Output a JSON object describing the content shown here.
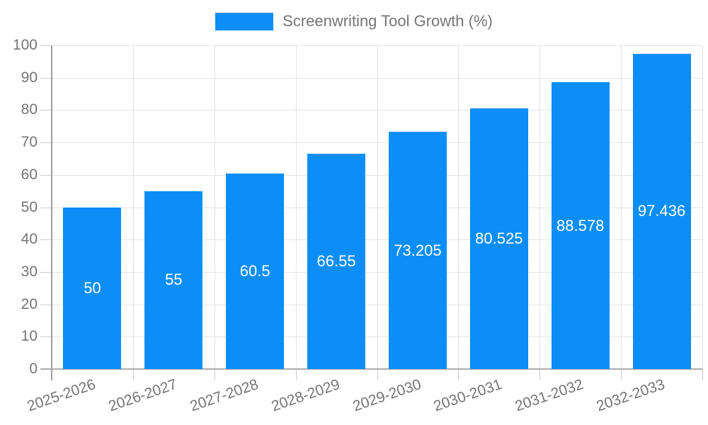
{
  "legend": {
    "label": "Screenwriting Tool Growth (%)",
    "swatch_color": "#0b8ef8"
  },
  "chart_data": {
    "type": "bar",
    "title": "",
    "xlabel": "",
    "ylabel": "",
    "categories": [
      "2025-2026",
      "2026-2027",
      "2027-2028",
      "2028-2029",
      "2029-2030",
      "2030-2031",
      "2031-2032",
      "2032-2033"
    ],
    "series": [
      {
        "name": "Screenwriting Tool Growth (%)",
        "values": [
          50,
          55,
          60.5,
          66.55,
          73.205,
          80.525,
          88.578,
          97.436
        ]
      }
    ],
    "value_labels": [
      "50",
      "55",
      "60.5",
      "66.55",
      "73.205",
      "80.525",
      "88.578",
      "97.436"
    ],
    "yticks": [
      0,
      10,
      20,
      30,
      40,
      50,
      60,
      70,
      80,
      90,
      100
    ],
    "ylim": [
      0,
      100
    ],
    "grid": true,
    "legend_position": "top-center",
    "x_label_rotation_deg": -19,
    "colors": {
      "bar": "#0b8ef8",
      "value_label": "#ffffff",
      "grid_line": "#e4e4e4",
      "tick_line": "#cccccc",
      "axis_line": "#9e9e9e",
      "tick_label": "#757575",
      "legend_text": "#757575",
      "background": "#ffffff"
    }
  }
}
